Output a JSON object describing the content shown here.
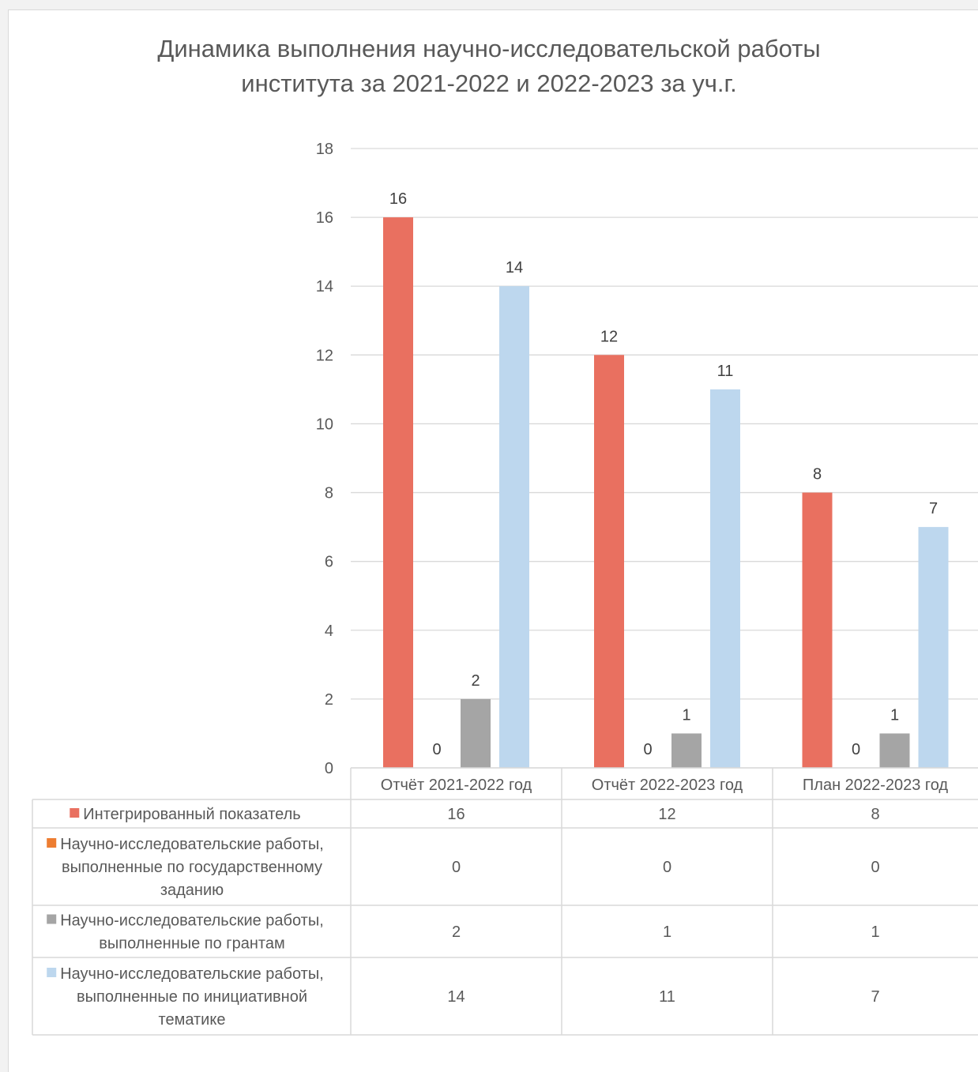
{
  "chart_data": {
    "type": "bar",
    "title": "Динамика выполнения научно-исследовательской работы\nинститута за 2021-2022 и 2022-2023 за уч.г.",
    "categories": [
      "Отчёт 2021-2022 год",
      "Отчёт 2022-2023 год",
      "План 2022-2023 год"
    ],
    "series": [
      {
        "name": "Интегрированный показатель",
        "values": [
          16,
          12,
          8
        ],
        "color": "#e97060",
        "legend_lines": [
          "Интегрированный показатель"
        ]
      },
      {
        "name": "Научно-исследовательские работы, выполненные по государственному заданию",
        "values": [
          0,
          0,
          0
        ],
        "color": "#ed7d31",
        "legend_lines": [
          "Научно-исследовательские работы,",
          "выполненные по государственному",
          "заданию"
        ]
      },
      {
        "name": "Научно-исследовательские работы, выполненные по грантам",
        "values": [
          2,
          1,
          1
        ],
        "color": "#a5a5a5",
        "legend_lines": [
          "Научно-исследовательские работы,",
          "выполненные по грантам"
        ]
      },
      {
        "name": "Научно-исследовательские работы, выполненные по инициативной тематике",
        "values": [
          14,
          11,
          7
        ],
        "color": "#bdd7ee",
        "legend_lines": [
          "Научно-исследовательские работы,",
          "выполненные по инициативной",
          "тематике"
        ]
      }
    ],
    "yticks": [
      0,
      2,
      4,
      6,
      8,
      10,
      12,
      14,
      16,
      18
    ],
    "ylim": [
      0,
      18
    ],
    "grid": true,
    "legend": "data table below chart",
    "data_labels": true
  }
}
